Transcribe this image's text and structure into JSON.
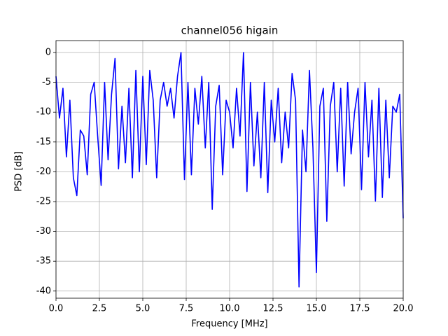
{
  "chart_data": {
    "type": "line",
    "title": "channel056 higain",
    "xlabel": "Frequency [MHz]",
    "ylabel": "PSD [dB]",
    "x": [
      0.0,
      0.2,
      0.4,
      0.6,
      0.8,
      1.0,
      1.2,
      1.4,
      1.6,
      1.8,
      2.0,
      2.2,
      2.4,
      2.6,
      2.8,
      3.0,
      3.2,
      3.4,
      3.6,
      3.8,
      4.0,
      4.2,
      4.4,
      4.6,
      4.8,
      5.0,
      5.2,
      5.4,
      5.6,
      5.8,
      6.0,
      6.2,
      6.4,
      6.6,
      6.8,
      7.0,
      7.2,
      7.4,
      7.6,
      7.8,
      8.0,
      8.2,
      8.4,
      8.6,
      8.8,
      9.0,
      9.2,
      9.4,
      9.6,
      9.8,
      10.0,
      10.2,
      10.4,
      10.6,
      10.8,
      11.0,
      11.2,
      11.4,
      11.6,
      11.8,
      12.0,
      12.2,
      12.4,
      12.6,
      12.8,
      13.0,
      13.2,
      13.4,
      13.6,
      13.8,
      14.0,
      14.2,
      14.4,
      14.6,
      14.8,
      15.0,
      15.2,
      15.4,
      15.6,
      15.8,
      16.0,
      16.2,
      16.4,
      16.6,
      16.8,
      17.0,
      17.2,
      17.4,
      17.6,
      17.8,
      18.0,
      18.2,
      18.4,
      18.6,
      18.8,
      19.0,
      19.2,
      19.4,
      19.6,
      19.8,
      20.0
    ],
    "series": [
      {
        "name": "channel056",
        "color": "#0000ff",
        "values": [
          -4,
          -11,
          -6,
          -17.5,
          -8,
          -21,
          -24,
          -13,
          -14,
          -20.5,
          -7,
          -5,
          -14,
          -22.3,
          -5,
          -18,
          -7,
          -1,
          -19.5,
          -9,
          -18.5,
          -6,
          -21,
          -3,
          -20,
          -4,
          -18.8,
          -3,
          -8,
          -21,
          -8,
          -5,
          -9,
          -6,
          -11,
          -4,
          0,
          -21.3,
          -5,
          -20.5,
          -6,
          -12,
          -4,
          -16,
          -5,
          -26.3,
          -9,
          -5.5,
          -20.5,
          -8,
          -10,
          -16,
          -6,
          -14,
          0,
          -23.3,
          -5,
          -19,
          -10,
          -21,
          -5,
          -23.5,
          -8,
          -15,
          -6,
          -18.5,
          -10,
          -16,
          -3.5,
          -8,
          -39.3,
          -13,
          -20,
          -3,
          -16,
          -36.9,
          -9,
          -6,
          -28.3,
          -9,
          -5,
          -20,
          -6,
          -22.4,
          -5,
          -17,
          -10,
          -6,
          -23,
          -5,
          -17.5,
          -8,
          -24.9,
          -6,
          -24.3,
          -8,
          -21,
          -9,
          -10,
          -7,
          -27.8
        ]
      }
    ],
    "xlim": [
      0,
      20
    ],
    "ylim": [
      -41.2,
      2
    ],
    "xticks": [
      {
        "value": 0,
        "label": "0.0"
      },
      2.5,
      {
        "value": 5,
        "label": "5.0"
      },
      7.5,
      {
        "value": 10,
        "label": "10.0"
      },
      12.5,
      {
        "value": 15,
        "label": "15.0"
      },
      17.5,
      {
        "value": 20,
        "label": "20.0"
      }
    ],
    "yticks": [
      0,
      -5,
      -10,
      -15,
      -20,
      -25,
      -30,
      -35,
      -40
    ],
    "grid": true
  }
}
